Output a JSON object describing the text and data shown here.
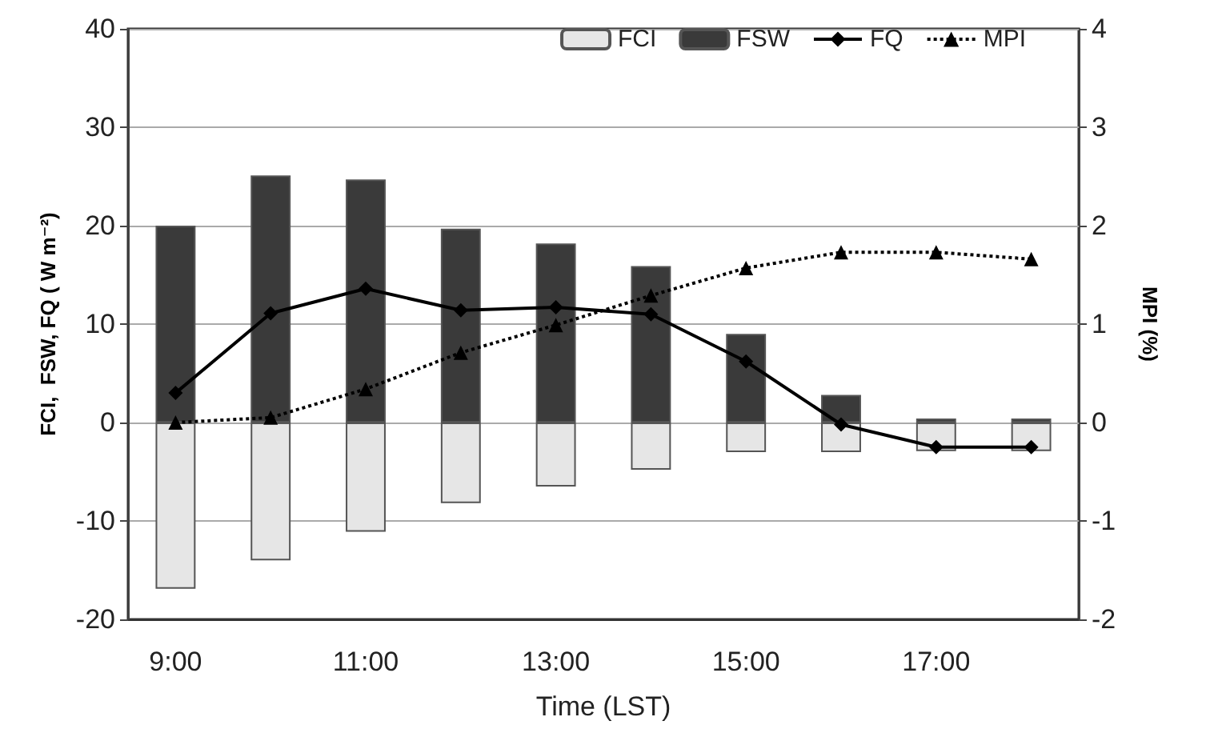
{
  "chart_data": {
    "type": "bar",
    "xlabel": "Time (LST)",
    "ylabel": "FCI,  FSW, FQ ( W m⁻²)",
    "y2label": "MPI (%)",
    "categories": [
      "9:00",
      null,
      "11:00",
      null,
      "13:00",
      null,
      "15:00",
      null,
      "17:00",
      null
    ],
    "stacked": true,
    "series": [
      {
        "name": "FCI",
        "color": "#e6e6e6",
        "values": [
          -16.9,
          -14.0,
          -11.1,
          -8.2,
          -6.5,
          -4.8,
          -3.0,
          -3.0,
          -2.9,
          -2.9
        ]
      },
      {
        "name": "FSW",
        "color": "#3a3a3a",
        "values": [
          20.0,
          25.1,
          24.7,
          19.7,
          18.2,
          15.9,
          9.0,
          2.8,
          0.4,
          0.4
        ]
      },
      {
        "name": "FQ",
        "type": "line",
        "color": "#000000",
        "marker": "diamond",
        "line_style": "solid",
        "values": [
          3.0,
          11.1,
          13.6,
          11.4,
          11.7,
          11.0,
          6.2,
          -0.2,
          -2.5,
          -2.5
        ]
      },
      {
        "name": "MPI",
        "type": "line",
        "axis": "y2",
        "color": "#000000",
        "marker": "triangle",
        "line_style": "dotted",
        "values": [
          0.0,
          0.05,
          0.34,
          0.71,
          0.99,
          1.29,
          1.57,
          1.73,
          1.73,
          1.66
        ]
      }
    ],
    "ylim": [
      -20,
      40
    ],
    "yticks": [
      -20,
      -10,
      0,
      10,
      20,
      30,
      40
    ],
    "y2lim": [
      -2,
      4
    ],
    "y2ticks": [
      -2,
      -1,
      0,
      1,
      2,
      3,
      4
    ],
    "grid": "y",
    "legend": "top right"
  }
}
